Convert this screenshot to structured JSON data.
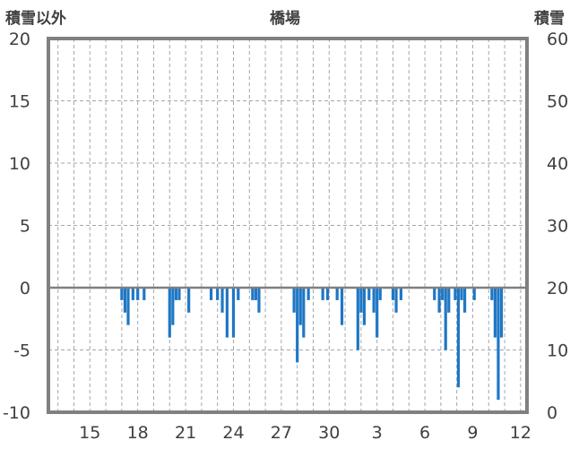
{
  "chart_data": {
    "type": "bar",
    "title": "橋場",
    "left_axis_label": "積雪以外",
    "right_axis_label": "積雪",
    "ylim_left": [
      -10,
      20
    ],
    "ylim_right": [
      0,
      60
    ],
    "y_ticks_left": [
      "20",
      "15",
      "10",
      "5",
      "0",
      "-5",
      "-10"
    ],
    "y_ticks_right": [
      "60",
      "50",
      "40",
      "30",
      "20",
      "10",
      "0"
    ],
    "x_tick_labels": [
      "15",
      "18",
      "21",
      "24",
      "27",
      "30",
      "3",
      "6",
      "9",
      "12"
    ],
    "grid": true,
    "series": [
      {
        "color": "#1f77c4",
        "values": [
          {
            "x": 17.0,
            "y": -1
          },
          {
            "x": 17.2,
            "y": -2
          },
          {
            "x": 17.4,
            "y": -3
          },
          {
            "x": 17.7,
            "y": -1
          },
          {
            "x": 18.0,
            "y": -1
          },
          {
            "x": 18.4,
            "y": -1
          },
          {
            "x": 20.0,
            "y": -4
          },
          {
            "x": 20.2,
            "y": -3
          },
          {
            "x": 20.4,
            "y": -1
          },
          {
            "x": 20.6,
            "y": -1
          },
          {
            "x": 21.2,
            "y": -2
          },
          {
            "x": 22.6,
            "y": -1
          },
          {
            "x": 23.0,
            "y": -1
          },
          {
            "x": 23.3,
            "y": -2
          },
          {
            "x": 23.6,
            "y": -4
          },
          {
            "x": 24.0,
            "y": -4
          },
          {
            "x": 24.3,
            "y": -1
          },
          {
            "x": 25.2,
            "y": -1
          },
          {
            "x": 25.4,
            "y": -1
          },
          {
            "x": 25.6,
            "y": -2
          },
          {
            "x": 27.8,
            "y": -2
          },
          {
            "x": 28.0,
            "y": -6
          },
          {
            "x": 28.2,
            "y": -3
          },
          {
            "x": 28.4,
            "y": -4
          },
          {
            "x": 28.7,
            "y": -1
          },
          {
            "x": 29.6,
            "y": -1
          },
          {
            "x": 29.9,
            "y": -1
          },
          {
            "x": 30.5,
            "y": -1
          },
          {
            "x": 30.8,
            "y": -3
          },
          {
            "x": 31.8,
            "y": -5
          },
          {
            "x": 32.0,
            "y": -2
          },
          {
            "x": 32.2,
            "y": -3
          },
          {
            "x": 32.5,
            "y": -1
          },
          {
            "x": 32.8,
            "y": -2
          },
          {
            "x": 33.0,
            "y": -4
          },
          {
            "x": 33.2,
            "y": -1
          },
          {
            "x": 34.0,
            "y": -1
          },
          {
            "x": 34.2,
            "y": -2
          },
          {
            "x": 34.5,
            "y": -1
          },
          {
            "x": 36.6,
            "y": -1
          },
          {
            "x": 36.9,
            "y": -2
          },
          {
            "x": 37.1,
            "y": -1
          },
          {
            "x": 37.3,
            "y": -5
          },
          {
            "x": 37.5,
            "y": -2
          },
          {
            "x": 37.9,
            "y": -1
          },
          {
            "x": 38.1,
            "y": -8
          },
          {
            "x": 38.3,
            "y": -1
          },
          {
            "x": 38.5,
            "y": -2
          },
          {
            "x": 39.1,
            "y": -1
          },
          {
            "x": 40.2,
            "y": -1
          },
          {
            "x": 40.4,
            "y": -4
          },
          {
            "x": 40.6,
            "y": -9
          },
          {
            "x": 40.8,
            "y": -4
          }
        ]
      }
    ]
  }
}
